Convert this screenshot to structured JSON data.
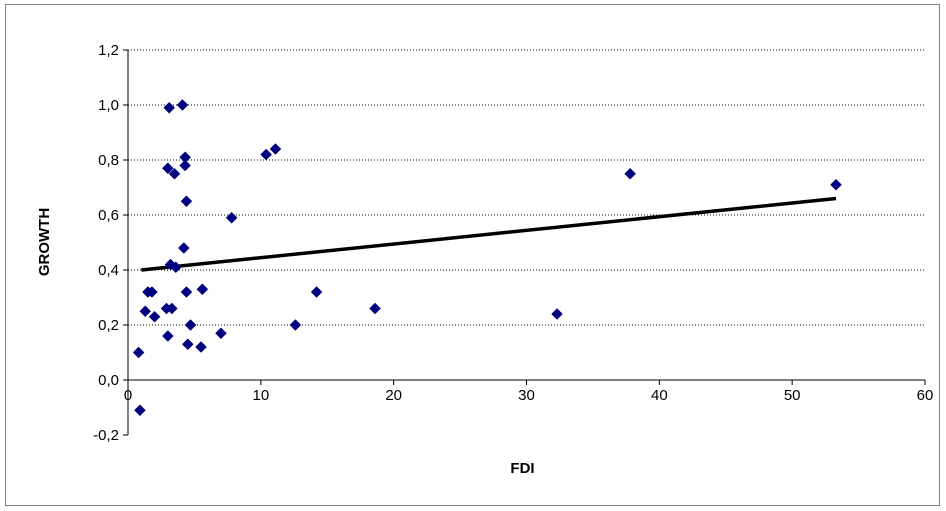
{
  "chart_data": {
    "type": "scatter",
    "title": "",
    "xlabel": "FDI",
    "ylabel": "GROWTH",
    "xlim": [
      0,
      60
    ],
    "ylim": [
      -0.2,
      1.2
    ],
    "x_ticks": [
      "0",
      "10",
      "20",
      "30",
      "40",
      "50",
      "60"
    ],
    "y_ticks": [
      "-0,2",
      "0,0",
      "0,2",
      "0,4",
      "0,6",
      "0,8",
      "1,0",
      "1,2"
    ],
    "grid": "horizontal dotted",
    "legend": "none",
    "marker_color": "#00007F",
    "trendline": {
      "x": [
        1.0,
        53.3
      ],
      "y": [
        0.4,
        0.66
      ],
      "color": "#000000"
    },
    "points": [
      {
        "x": 0.9,
        "y": -0.11
      },
      {
        "x": 0.8,
        "y": 0.1
      },
      {
        "x": 1.3,
        "y": 0.25
      },
      {
        "x": 1.5,
        "y": 0.32
      },
      {
        "x": 1.8,
        "y": 0.32
      },
      {
        "x": 2.0,
        "y": 0.23
      },
      {
        "x": 2.9,
        "y": 0.26
      },
      {
        "x": 3.0,
        "y": 0.16
      },
      {
        "x": 3.3,
        "y": 0.26
      },
      {
        "x": 3.0,
        "y": 0.77
      },
      {
        "x": 3.1,
        "y": 0.99
      },
      {
        "x": 3.2,
        "y": 0.42
      },
      {
        "x": 3.5,
        "y": 0.75
      },
      {
        "x": 3.6,
        "y": 0.41
      },
      {
        "x": 4.1,
        "y": 1.0
      },
      {
        "x": 4.2,
        "y": 0.48
      },
      {
        "x": 4.3,
        "y": 0.81
      },
      {
        "x": 4.3,
        "y": 0.78
      },
      {
        "x": 4.4,
        "y": 0.65
      },
      {
        "x": 4.4,
        "y": 0.32
      },
      {
        "x": 4.5,
        "y": 0.13
      },
      {
        "x": 4.7,
        "y": 0.2
      },
      {
        "x": 5.5,
        "y": 0.12
      },
      {
        "x": 5.6,
        "y": 0.33
      },
      {
        "x": 7.0,
        "y": 0.17
      },
      {
        "x": 7.8,
        "y": 0.59
      },
      {
        "x": 10.4,
        "y": 0.82
      },
      {
        "x": 11.1,
        "y": 0.84
      },
      {
        "x": 12.6,
        "y": 0.2
      },
      {
        "x": 14.2,
        "y": 0.32
      },
      {
        "x": 18.6,
        "y": 0.26
      },
      {
        "x": 32.3,
        "y": 0.24
      },
      {
        "x": 37.8,
        "y": 0.75
      },
      {
        "x": 53.3,
        "y": 0.71
      }
    ]
  }
}
